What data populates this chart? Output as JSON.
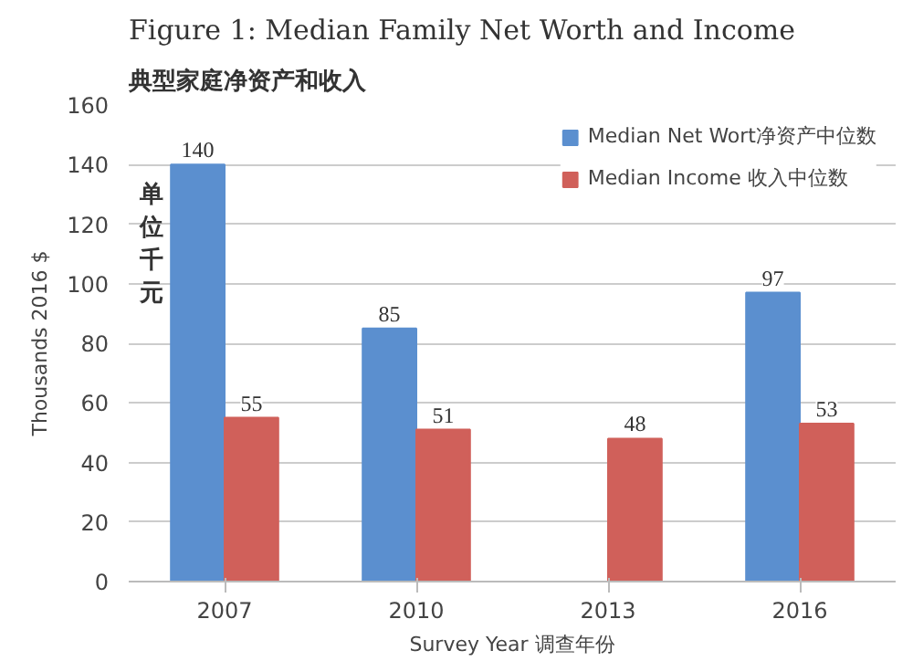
{
  "chart_data": {
    "type": "bar",
    "title": "Figure 1: Median Family Net Worth and Income",
    "subtitle": "典型家庭净资产和收入",
    "xlabel": "Survey Year 调查年份",
    "ylabel": "Thousands 2016 $",
    "annotations": [
      "单位千元"
    ],
    "categories": [
      "2007",
      "2010",
      "2013",
      "2016"
    ],
    "series": [
      {
        "name": "Median Net Wort净资产中位数",
        "color": "#5b8fcf",
        "values": [
          140,
          85,
          null,
          97
        ]
      },
      {
        "name": "Median Income 收入中位数",
        "color": "#d0605a",
        "values": [
          55,
          51,
          48,
          53
        ]
      }
    ],
    "ylim": [
      0,
      160
    ],
    "yticks": [
      0,
      20,
      40,
      60,
      80,
      100,
      120,
      140,
      160
    ],
    "grid": "y",
    "legend": "top right",
    "data_labels": true
  }
}
